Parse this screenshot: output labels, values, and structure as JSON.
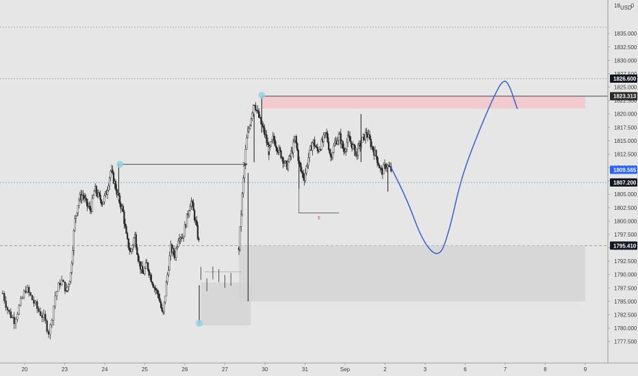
{
  "chart_data": {
    "type": "candlestick",
    "currency": "USD",
    "ylim": [
      1774.0,
      1840.0
    ],
    "y_ticks": [
      1777.5,
      1780.0,
      1782.5,
      1785.0,
      1787.5,
      1790.0,
      1792.5,
      1795.0,
      1797.5,
      1800.0,
      1802.5,
      1805.0,
      1807.5,
      1810.0,
      1812.5,
      1815.0,
      1817.5,
      1820.0,
      1822.5,
      1825.0,
      1827.5,
      1830.0,
      1832.5,
      1835.0
    ],
    "y_tick_labels": [
      "1777.500",
      "1780.000",
      "1782.500",
      "1785.000",
      "1787.500",
      "1790.000",
      "1792.500",
      "1795.000",
      "1797.500",
      "1800.000",
      "1802.500",
      "1805.000",
      "1807.500",
      "1810.000",
      "1812.500",
      "1815.000",
      "1817.500",
      "1820.000",
      "1822.500",
      "1825.000",
      "1827.500",
      "1830.000",
      "1832.500",
      "1835.000"
    ],
    "top_label_partial": "18",
    "top_label_suffix": "0",
    "x_labels": [
      {
        "label": "20",
        "day": 0
      },
      {
        "label": "23",
        "day": 1
      },
      {
        "label": "24",
        "day": 2
      },
      {
        "label": "25",
        "day": 3
      },
      {
        "label": "26",
        "day": 4
      },
      {
        "label": "27",
        "day": 5
      },
      {
        "label": "30",
        "day": 6
      },
      {
        "label": "31",
        "day": 7
      },
      {
        "label": "Sep",
        "day": 8
      },
      {
        "label": "2",
        "day": 9
      },
      {
        "label": "3",
        "day": 10
      },
      {
        "label": "6",
        "day": 11
      },
      {
        "label": "7",
        "day": 12
      },
      {
        "label": "8",
        "day": 13
      },
      {
        "label": "9",
        "day": 14
      }
    ],
    "ohlc_segments": [
      {
        "start_day": -0.55,
        "end_day": 1.05,
        "n": 40,
        "anchors": [
          1786.5,
          1783.0,
          1781.5,
          1784.5,
          1787.5,
          1785.5,
          1783.5,
          1782.0,
          1779.0,
          1786.0,
          1789.0,
          1787.0
        ]
      },
      {
        "start_day": 1.05,
        "end_day": 2.35,
        "n": 52,
        "anchors": [
          1787.0,
          1790.0,
          1800.0,
          1804.0,
          1805.0,
          1803.0,
          1802.0,
          1806.0,
          1804.5,
          1803.5,
          1805.5,
          1809.5,
          1807.0,
          1804.0
        ]
      },
      {
        "start_day": 2.35,
        "end_day": 4.35,
        "n": 75,
        "anchors": [
          1804.0,
          1802.0,
          1796.5,
          1794.0,
          1797.5,
          1792.5,
          1790.0,
          1792.0,
          1789.5,
          1787.5,
          1786.0,
          1782.0,
          1789.0,
          1795.0,
          1793.5,
          1797.5,
          1797.0,
          1800.5,
          1804.0,
          1800.5,
          1796.0
        ]
      },
      {
        "start_day": 5.35,
        "end_day": 6.1,
        "n": 28,
        "anchors": [
          1795.0,
          1806.0,
          1815.0,
          1818.5,
          1822.5,
          1820.0,
          1818.0,
          1816.0,
          1813.0
        ]
      },
      {
        "start_day": 6.1,
        "end_day": 8.3,
        "n": 88,
        "anchors": [
          1813.0,
          1815.5,
          1813.5,
          1812.0,
          1810.0,
          1812.5,
          1815.5,
          1810.0,
          1808.0,
          1812.0,
          1815.0,
          1813.0,
          1814.5,
          1816.5,
          1812.0,
          1814.5,
          1816.0,
          1813.0,
          1815.5,
          1814.0,
          1812.0
        ]
      },
      {
        "start_day": 8.3,
        "end_day": 9.15,
        "n": 33,
        "anchors": [
          1813.0,
          1815.0,
          1816.5,
          1814.0,
          1812.0,
          1809.0,
          1810.5,
          1809.5
        ]
      }
    ],
    "extreme_wicks": [
      {
        "day": 5.58,
        "high": 1809.0,
        "low": 1785.0
      },
      {
        "day": 5.73,
        "high": 1820.0,
        "low": 1811.0
      },
      {
        "day": 5.92,
        "high": 1823.3,
        "low": 1816.5
      },
      {
        "day": 2.35,
        "high": 1810.8,
        "low": 1805.0
      },
      {
        "day": 4.36,
        "high": 1788.0,
        "low": 1780.8
      },
      {
        "day": 6.85,
        "high": 1812.0,
        "low": 1806.0
      },
      {
        "day": 9.07,
        "high": 1810.0,
        "low": 1805.5
      },
      {
        "day": 8.4,
        "high": 1820.0,
        "low": 1811.0
      }
    ],
    "horizontal_levels": [
      {
        "price": 1836.2,
        "style": "dotted",
        "color": "#909090",
        "tag": ""
      },
      {
        "price": 1826.6,
        "style": "dotted",
        "color": "#909090",
        "tag": "1826.600"
      },
      {
        "price": 1807.2,
        "style": "dotted",
        "color": "#6a9fc8",
        "tag": "1807.200"
      },
      {
        "price": 1795.41,
        "style": "dashed",
        "color": "#909090",
        "tag": "1795.410"
      }
    ],
    "price_tags": [
      {
        "price": 1823.313,
        "label": "1823.313",
        "bg": "#2b2b2b",
        "fg": "#ffffff"
      },
      {
        "price": 1809.565,
        "label": "1809.565",
        "bg": "#2962ff",
        "fg": "#ffffff"
      },
      {
        "price": 1807.2,
        "label": "1807.200",
        "bg": "#131722",
        "fg": "#ffffff"
      },
      {
        "price": 1826.6,
        "label": "1826.600",
        "bg": "#131722",
        "fg": "#ffffff"
      },
      {
        "price": 1795.41,
        "label": "1795.410",
        "bg": "#131722",
        "fg": "#ffffff"
      }
    ],
    "zones": [
      {
        "name": "supply-zone",
        "day_start": 5.92,
        "day_end": 14.0,
        "price_top": 1823.3,
        "price_bottom": 1821.0,
        "color": "#f2c6c8"
      },
      {
        "name": "demand-zone",
        "day_start": 5.35,
        "day_end": 14.0,
        "price_top": 1795.41,
        "price_bottom": 1785.0,
        "color": "#d3d3d3"
      },
      {
        "name": "left-zone",
        "day_start": 4.4,
        "day_end": 5.65,
        "price_top": 1788.5,
        "price_bottom": 1780.5,
        "color": "#d3d3d3"
      }
    ],
    "markers": [
      {
        "day": 2.38,
        "price": 1810.6,
        "color": "#8fd3dd"
      },
      {
        "day": 5.92,
        "price": 1823.5,
        "color": "#8fd3dd"
      },
      {
        "day": 4.36,
        "price": 1780.9,
        "color": "#8fd3dd"
      }
    ],
    "arrow_line": {
      "from_day": 2.38,
      "to_day": 5.55,
      "price": 1810.6,
      "color": "#333333"
    },
    "high_line": {
      "from_day": 5.92,
      "price": 1823.313,
      "color": "#333333"
    },
    "low_bracket": {
      "day_start": 6.85,
      "day_end": 7.85,
      "price_top": 1806.0,
      "price_bottom": 1801.5,
      "label": "$",
      "label_color": "#e0473f"
    },
    "small_ray": {
      "day_start": 4.5,
      "day_end": 5.4,
      "price": 1790.5,
      "color": "#888888"
    },
    "projection": {
      "color": "#2f5fd0",
      "points": [
        [
          9.15,
          1810.0
        ],
        [
          9.55,
          1804.0
        ],
        [
          9.95,
          1796.0
        ],
        [
          10.35,
          1793.0
        ],
        [
          10.6,
          1798.0
        ],
        [
          10.9,
          1808.0
        ],
        [
          11.3,
          1816.0
        ],
        [
          11.7,
          1823.0
        ],
        [
          11.95,
          1826.5
        ],
        [
          12.1,
          1825.5
        ],
        [
          12.3,
          1821.0
        ]
      ]
    }
  }
}
